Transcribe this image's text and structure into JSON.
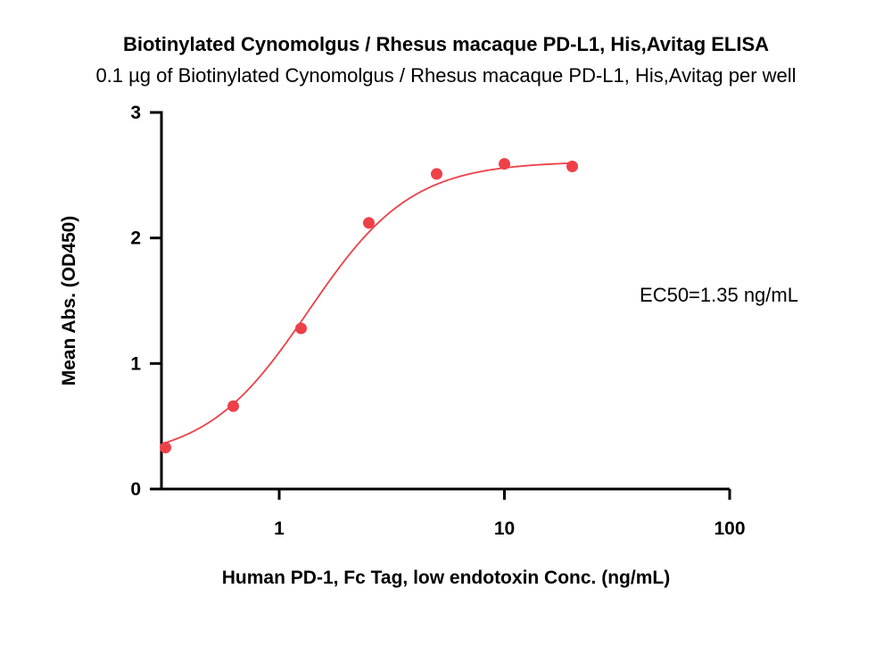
{
  "chart_data": {
    "type": "scatter",
    "title": "Biotinylated Cynomolgus / Rhesus macaque PD-L1, His,Avitag ELISA",
    "subtitle": "0.1 µg of Biotinylated Cynomolgus / Rhesus macaque PD-L1, His,Avitag per well",
    "xlabel": "Human PD-1, Fc Tag, low endotoxin Conc. (ng/mL)",
    "ylabel": "Mean Abs. (OD450)",
    "x_scale": "log",
    "xlim": [
      0.3,
      100
    ],
    "ylim": [
      0,
      3
    ],
    "x_ticks": [
      1,
      10,
      100
    ],
    "x_tick_labels": [
      "1",
      "10",
      "100"
    ],
    "y_ticks": [
      0,
      1,
      2,
      3
    ],
    "y_tick_labels": [
      "0",
      "1",
      "2",
      "3"
    ],
    "grid": false,
    "series": [
      {
        "color": "#ee4048",
        "x": [
          0.3125,
          0.625,
          1.25,
          2.5,
          5,
          10,
          20
        ],
        "y": [
          0.33,
          0.66,
          1.28,
          2.12,
          2.51,
          2.59,
          2.57
        ]
      }
    ],
    "fit_curve": {
      "model": "4PL",
      "bottom": 0.23,
      "top": 2.61,
      "ec50": 1.35,
      "hill": 1.9,
      "x_range": [
        0.3125,
        20
      ]
    },
    "annotation": "EC50=1.35 ng/mL"
  }
}
